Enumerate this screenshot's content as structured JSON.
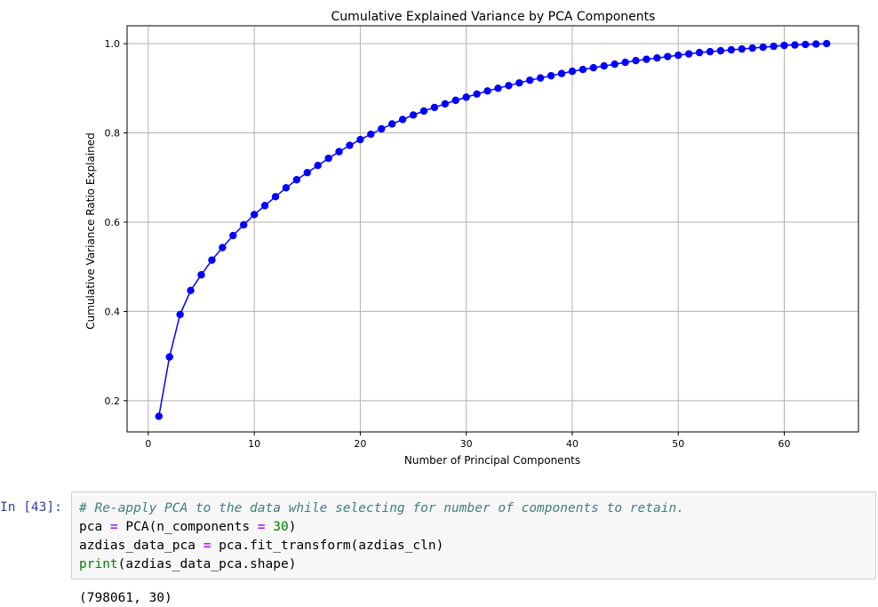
{
  "chart_data": {
    "type": "line",
    "title": "Cumulative Explained Variance by PCA Components",
    "xlabel": "Number of Principal Components",
    "ylabel": "Cumulative Variance Ratio Explained",
    "xlim": [
      -2,
      67
    ],
    "ylim": [
      0.13,
      1.04
    ],
    "xticks": [
      0,
      10,
      20,
      30,
      40,
      50,
      60
    ],
    "yticks": [
      0.2,
      0.4,
      0.6,
      0.8,
      1.0
    ],
    "ytick_labels": [
      "0.2",
      "0.4",
      "0.6",
      "0.8",
      "1.0"
    ],
    "grid": true,
    "series": [
      {
        "color": "#0000ff",
        "marker": "circle",
        "x": [
          1,
          2,
          3,
          4,
          5,
          6,
          7,
          8,
          9,
          10,
          11,
          12,
          13,
          14,
          15,
          16,
          17,
          18,
          19,
          20,
          21,
          22,
          23,
          24,
          25,
          26,
          27,
          28,
          29,
          30,
          31,
          32,
          33,
          34,
          35,
          36,
          37,
          38,
          39,
          40,
          41,
          42,
          43,
          44,
          45,
          46,
          47,
          48,
          49,
          50,
          51,
          52,
          53,
          54,
          55,
          56,
          57,
          58,
          59,
          60,
          61,
          62,
          63,
          64
        ],
        "y": [
          0.165,
          0.298,
          0.393,
          0.447,
          0.482,
          0.515,
          0.543,
          0.57,
          0.594,
          0.617,
          0.637,
          0.657,
          0.677,
          0.695,
          0.711,
          0.727,
          0.743,
          0.758,
          0.772,
          0.785,
          0.797,
          0.809,
          0.82,
          0.83,
          0.84,
          0.849,
          0.857,
          0.865,
          0.873,
          0.88,
          0.887,
          0.894,
          0.9,
          0.906,
          0.912,
          0.918,
          0.923,
          0.928,
          0.933,
          0.938,
          0.942,
          0.946,
          0.95,
          0.954,
          0.958,
          0.962,
          0.965,
          0.968,
          0.971,
          0.974,
          0.977,
          0.98,
          0.982,
          0.984,
          0.986,
          0.988,
          0.99,
          0.992,
          0.994,
          0.996,
          0.997,
          0.998,
          0.999,
          1.0
        ]
      }
    ]
  },
  "cell": {
    "prompt": "In [43]:",
    "code": {
      "line1_comment": "# Re-apply PCA to the data while selecting for number of components to retain.",
      "line2_a": "pca ",
      "line2_op": "=",
      "line2_b": " PCA(n_components ",
      "line2_op2": "=",
      "line2_num": "30",
      "line2_c": ")",
      "line3_a": "azdias_data_pca ",
      "line3_op": "=",
      "line3_b": " pca.fit_transform(azdias_cln)",
      "line4_builtin": "print",
      "line4_b": "(azdias_data_pca.shape)"
    },
    "output": "(798061, 30)"
  }
}
